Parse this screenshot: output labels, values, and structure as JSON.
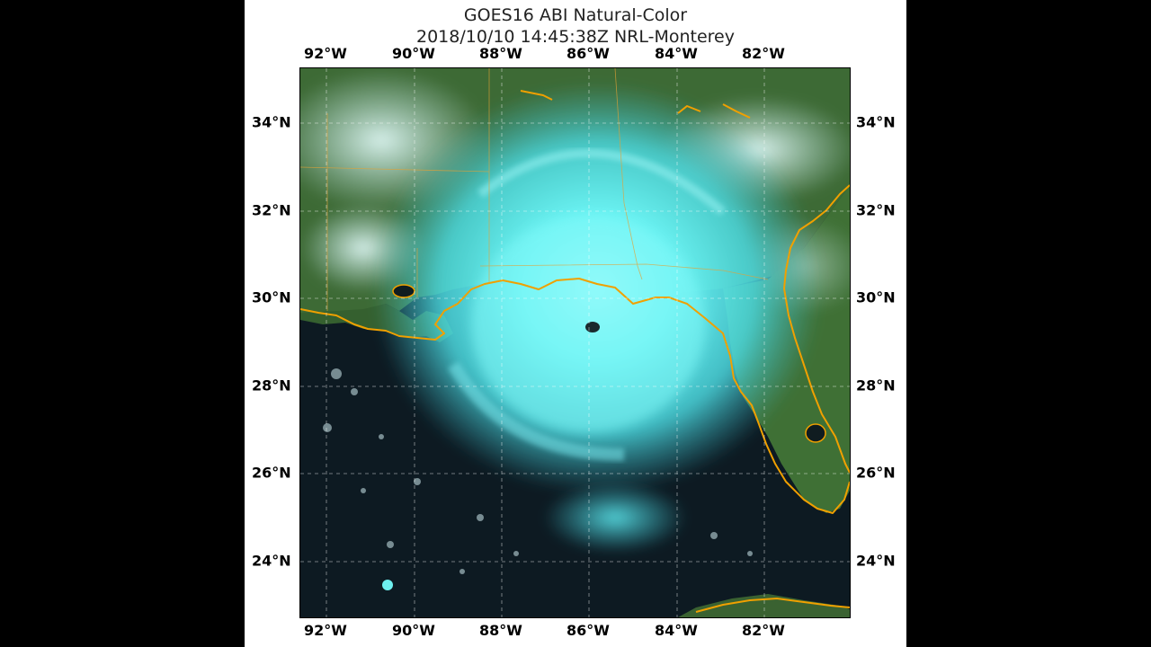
{
  "figure": {
    "title_line1": "GOES16 ABI Natural-Color",
    "title_line2": "2018/10/10 14:45:38Z NRL-Monterey"
  },
  "map": {
    "projection": "lat-lon grid",
    "longitude_labels": [
      "92°W",
      "90°W",
      "88°W",
      "86°W",
      "84°W",
      "82°W"
    ],
    "latitude_labels": [
      "34°N",
      "32°N",
      "30°N",
      "28°N",
      "26°N",
      "24°N"
    ],
    "gridlines": true,
    "coastline_color": "#f0a000",
    "cloud_color": "#5ff0f0",
    "land_color": "#3d6a35",
    "ocean_color": "#0d1a22"
  }
}
